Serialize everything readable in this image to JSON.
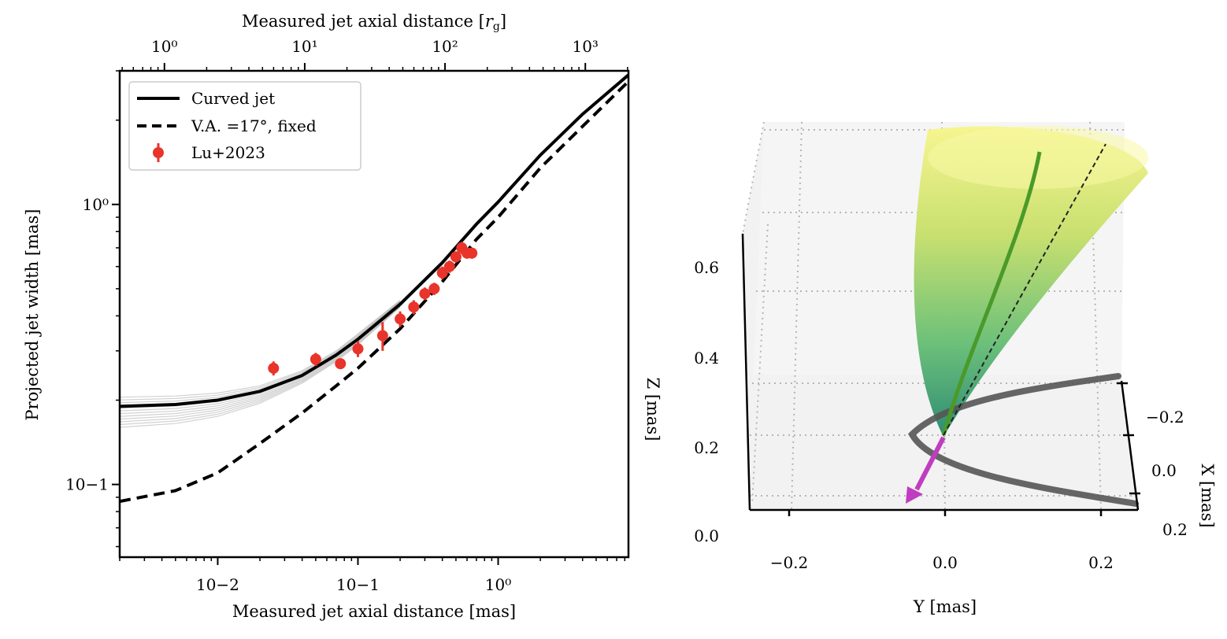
{
  "chart_data": [
    {
      "type": "line",
      "xscale": "log",
      "yscale": "log",
      "xlabel": "Measured jet axial distance [mas]",
      "ylabel": "Projected jet width [mas]",
      "xlabel_top": "Measured jet axial distance [r_g]",
      "xlim": [
        0.002,
        8.5
      ],
      "ylim": [
        0.055,
        3.0
      ],
      "top_xlim": [
        0.48,
        2030
      ],
      "x_ticks": [
        {
          "value": 0.01,
          "label": "10−2"
        },
        {
          "value": 0.1,
          "label": "10−1"
        },
        {
          "value": 1,
          "label": "10⁰"
        }
      ],
      "y_ticks": [
        {
          "value": 0.1,
          "label": "10−1"
        },
        {
          "value": 1,
          "label": "10⁰"
        }
      ],
      "top_ticks": [
        {
          "value": 1,
          "label": "10⁰"
        },
        {
          "value": 10,
          "label": "10¹"
        },
        {
          "value": 100,
          "label": "10²"
        },
        {
          "value": 1000,
          "label": "10³"
        }
      ],
      "legend": {
        "position": "upper-left",
        "entries": [
          {
            "label": "Curved jet",
            "style": "solid"
          },
          {
            "label": "V.A. =17°, fixed",
            "style": "dashed"
          },
          {
            "label": "Lu+2023",
            "style": "marker"
          }
        ]
      },
      "series": [
        {
          "name": "Curved jet",
          "style": "solid",
          "color": "#000000",
          "x": [
            0.002,
            0.005,
            0.01,
            0.02,
            0.04,
            0.07,
            0.1,
            0.2,
            0.4,
            0.7,
            1.0,
            2.0,
            4.0,
            8.5
          ],
          "y": [
            0.19,
            0.193,
            0.2,
            0.215,
            0.245,
            0.29,
            0.33,
            0.44,
            0.62,
            0.85,
            1.02,
            1.5,
            2.1,
            2.9
          ]
        },
        {
          "name": "V.A. =17°, fixed",
          "style": "dashed",
          "color": "#000000",
          "x": [
            0.002,
            0.005,
            0.01,
            0.02,
            0.04,
            0.07,
            0.1,
            0.2,
            0.4,
            0.7,
            1.0,
            2.0,
            4.0,
            8.5
          ],
          "y": [
            0.087,
            0.095,
            0.11,
            0.14,
            0.18,
            0.225,
            0.26,
            0.36,
            0.53,
            0.75,
            0.9,
            1.35,
            1.9,
            2.75
          ]
        }
      ],
      "spread_curves": {
        "color": "#999999",
        "x": [
          0.002,
          0.005,
          0.01,
          0.02,
          0.04,
          0.07,
          0.1,
          0.2
        ],
        "upper": [
          0.205,
          0.207,
          0.212,
          0.225,
          0.255,
          0.3,
          0.345,
          0.455
        ],
        "lower": [
          0.16,
          0.165,
          0.175,
          0.195,
          0.23,
          0.275,
          0.315,
          0.43
        ],
        "count": 12
      },
      "points": {
        "name": "Lu+2023",
        "color": "#e8342a",
        "x": [
          0.025,
          0.05,
          0.075,
          0.1,
          0.15,
          0.2,
          0.25,
          0.3,
          0.35,
          0.4,
          0.45,
          0.5,
          0.55,
          0.6,
          0.65
        ],
        "y": [
          0.26,
          0.28,
          0.27,
          0.305,
          0.34,
          0.39,
          0.43,
          0.48,
          0.5,
          0.57,
          0.6,
          0.65,
          0.7,
          0.67,
          0.67
        ],
        "err": [
          0.015,
          0.015,
          0.012,
          0.02,
          0.04,
          0.025,
          0.025,
          0.025,
          0.025,
          0.03,
          0.03,
          0.03,
          0.035,
          0.03,
          0.03
        ]
      }
    },
    {
      "type": "3d-surface",
      "xlabel": "Y [mas]",
      "ylabel": "X [mas]",
      "zlabel": "Z [mas]",
      "y_axis_ticks": [
        "−0.2",
        "0.0",
        "0.2"
      ],
      "x_axis_ticks": [
        "−0.2",
        "0.0",
        "0.2"
      ],
      "z_axis_ticks": [
        "0.0",
        "0.2",
        "0.4",
        "0.6"
      ],
      "surface_colormap": "viridis",
      "curves": [
        "jet axis (green)",
        "fixed axis (dashed)",
        "projection (dark gray)",
        "arrow (magenta)"
      ],
      "colors": {
        "axis": "#4a9a2a",
        "arrow": "#c03cc0",
        "projection": "#555555",
        "surface_top": "#f7f590",
        "surface_bottom": "#2e8c73"
      }
    }
  ]
}
